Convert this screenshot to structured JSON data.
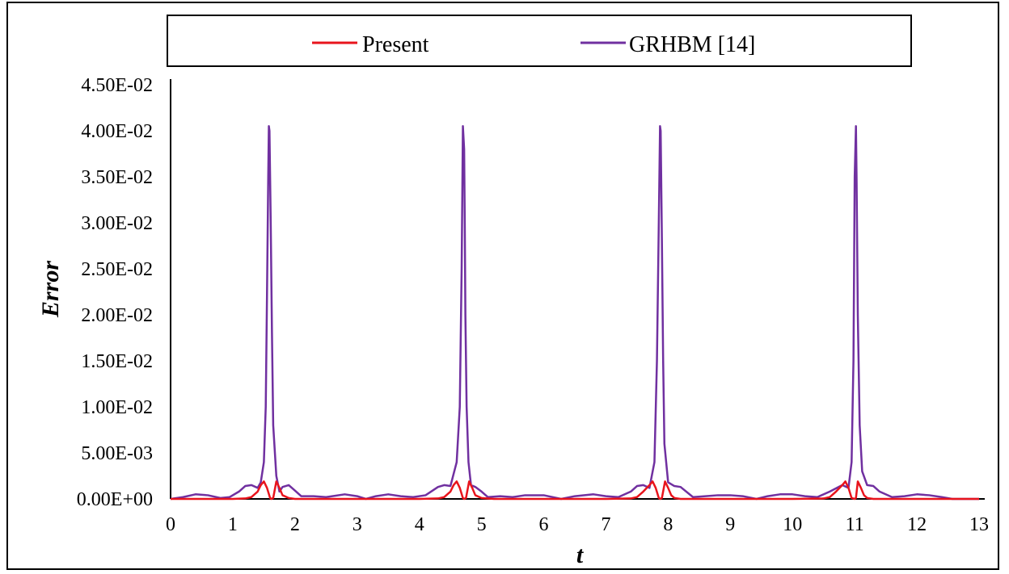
{
  "chart_data": {
    "type": "line",
    "title": "",
    "xlabel": "t",
    "ylabel": "Error",
    "xlim": [
      0,
      13
    ],
    "ylim": [
      0,
      0.045
    ],
    "x_ticks": [
      "0",
      "1",
      "2",
      "3",
      "4",
      "5",
      "6",
      "7",
      "8",
      "9",
      "10",
      "11",
      "12",
      "13"
    ],
    "y_ticks": [
      "0.00E+00",
      "5.00E-03",
      "1.00E-02",
      "1.50E-02",
      "2.00E-02",
      "2.50E-02",
      "3.00E-02",
      "3.50E-02",
      "4.00E-02",
      "4.50E-02"
    ],
    "grid": false,
    "legend_position": "top",
    "series": [
      {
        "name": "Present",
        "color": "#e8141c",
        "x": [
          0,
          0.5,
          1.0,
          1.2,
          1.3,
          1.4,
          1.45,
          1.5,
          1.55,
          1.6,
          1.62,
          1.65,
          1.7,
          1.75,
          1.8,
          1.9,
          2.0,
          2.2,
          2.5,
          3.0,
          3.5,
          4.0,
          4.3,
          4.4,
          4.5,
          4.55,
          4.6,
          4.65,
          4.7,
          4.72,
          4.75,
          4.8,
          4.85,
          4.9,
          5.0,
          5.2,
          5.5,
          6.0,
          6.5,
          7.0,
          7.4,
          7.5,
          7.6,
          7.7,
          7.75,
          7.8,
          7.85,
          7.87,
          7.9,
          7.95,
          8.0,
          8.05,
          8.1,
          8.2,
          8.4,
          9.0,
          9.5,
          10.0,
          10.5,
          10.6,
          10.7,
          10.8,
          10.85,
          10.9,
          10.95,
          11.0,
          11.02,
          11.05,
          11.1,
          11.15,
          11.2,
          11.3,
          11.5,
          12.0,
          12.5,
          13.0
        ],
        "y": [
          0,
          0,
          0,
          5e-05,
          0.0002,
          0.0008,
          0.0015,
          0.0019,
          0.0012,
          0.0001,
          0,
          0.0001,
          0.0019,
          0.0012,
          0.0004,
          0.0001,
          0,
          0,
          0,
          0,
          0,
          0,
          5e-05,
          0.0002,
          0.0008,
          0.0015,
          0.0019,
          0.0012,
          0.0001,
          0,
          0.0001,
          0.0019,
          0.0012,
          0.0004,
          0.0001,
          0,
          0,
          0,
          0,
          0,
          5e-05,
          0.0002,
          0.0008,
          0.0015,
          0.0019,
          0.0012,
          0.0001,
          0,
          0.0001,
          0.0019,
          0.0012,
          0.0004,
          0.0001,
          0,
          0,
          0,
          0,
          0,
          5e-05,
          0.0002,
          0.0008,
          0.0015,
          0.0019,
          0.0012,
          0.0001,
          0,
          0.0001,
          0.0019,
          0.0012,
          0.0004,
          0.0001,
          0,
          0,
          0,
          0,
          0
        ]
      },
      {
        "name": "GRHBM [14]",
        "color": "#7030a0",
        "x": [
          0,
          0.2,
          0.4,
          0.6,
          0.8,
          0.95,
          1.1,
          1.2,
          1.3,
          1.4,
          1.45,
          1.5,
          1.53,
          1.55,
          1.57,
          1.58,
          1.59,
          1.61,
          1.63,
          1.65,
          1.7,
          1.75,
          1.8,
          1.9,
          2.0,
          2.1,
          2.3,
          2.5,
          2.6,
          2.8,
          3.0,
          3.14,
          3.3,
          3.5,
          3.7,
          3.9,
          4.1,
          4.3,
          4.4,
          4.5,
          4.6,
          4.65,
          4.68,
          4.7,
          4.72,
          4.73,
          4.74,
          4.76,
          4.79,
          4.83,
          4.9,
          5.0,
          5.1,
          5.3,
          5.5,
          5.7,
          6.0,
          6.28,
          6.5,
          6.8,
          7.0,
          7.2,
          7.4,
          7.5,
          7.6,
          7.7,
          7.78,
          7.82,
          7.85,
          7.87,
          7.88,
          7.9,
          7.92,
          7.94,
          8.0,
          8.1,
          8.2,
          8.4,
          8.6,
          8.8,
          9.0,
          9.2,
          9.42,
          9.6,
          9.8,
          10.0,
          10.2,
          10.4,
          10.6,
          10.8,
          10.9,
          10.95,
          10.98,
          11.0,
          11.02,
          11.03,
          11.05,
          11.08,
          11.12,
          11.2,
          11.3,
          11.4,
          11.6,
          11.8,
          12.0,
          12.2,
          12.4,
          12.57,
          12.7,
          13.0
        ],
        "y": [
          0,
          0.0002,
          0.0005,
          0.0004,
          0.0001,
          0.0002,
          0.0008,
          0.0014,
          0.0015,
          0.0012,
          0.0018,
          0.004,
          0.01,
          0.022,
          0.035,
          0.0405,
          0.04,
          0.03,
          0.018,
          0.008,
          0.0025,
          0.0008,
          0.0013,
          0.0015,
          0.0009,
          0.0003,
          0.0003,
          0.0002,
          0.0003,
          0.0005,
          0.0003,
          0,
          0.0003,
          0.0005,
          0.0003,
          0.0002,
          0.0004,
          0.0013,
          0.0015,
          0.0014,
          0.004,
          0.01,
          0.025,
          0.0405,
          0.038,
          0.03,
          0.02,
          0.01,
          0.004,
          0.0015,
          0.0013,
          0.0008,
          0.0002,
          0.0003,
          0.0002,
          0.0004,
          0.0004,
          0,
          0.0003,
          0.0005,
          0.0003,
          0.0002,
          0.0008,
          0.0014,
          0.0015,
          0.0012,
          0.004,
          0.015,
          0.03,
          0.0405,
          0.04,
          0.028,
          0.015,
          0.006,
          0.0018,
          0.0014,
          0.0013,
          0.0002,
          0.0003,
          0.0004,
          0.0004,
          0.0003,
          0,
          0.0003,
          0.0005,
          0.0005,
          0.0003,
          0.0002,
          0.0008,
          0.0015,
          0.0012,
          0.004,
          0.015,
          0.035,
          0.0405,
          0.035,
          0.02,
          0.008,
          0.003,
          0.0015,
          0.0014,
          0.0008,
          0.0002,
          0.0003,
          0.0005,
          0.0004,
          0.0002,
          0,
          0,
          0
        ]
      }
    ]
  }
}
